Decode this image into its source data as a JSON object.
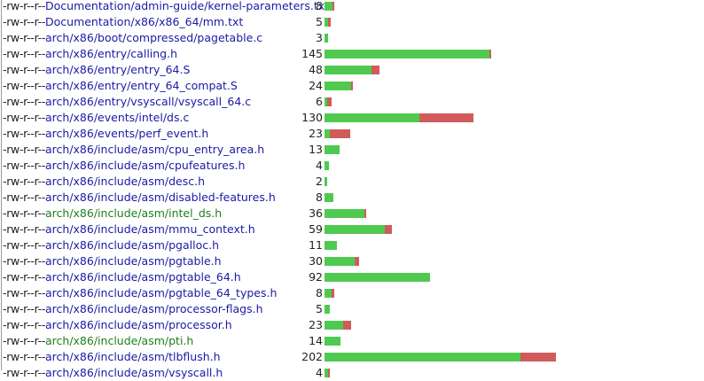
{
  "colors": {
    "insert": "#4fca4f",
    "delete": "#cf5b5b",
    "link": "#1a1aa6",
    "added_link": "#1c7f1c"
  },
  "scale_total": 202,
  "files": [
    {
      "mode": "-rw-r--r--",
      "path": "Documentation/admin-guide/kernel-parameters.txt",
      "count": "8",
      "ins": 7,
      "del": 1,
      "added": false
    },
    {
      "mode": "-rw-r--r--",
      "path": "Documentation/x86/x86_64/mm.txt",
      "count": "5",
      "ins": 3,
      "del": 2,
      "added": false
    },
    {
      "mode": "-rw-r--r--",
      "path": "arch/x86/boot/compressed/pagetable.c",
      "count": "3",
      "ins": 3,
      "del": 0,
      "added": false
    },
    {
      "mode": "-rw-r--r--",
      "path": "arch/x86/entry/calling.h",
      "count": "145",
      "ins": 144,
      "del": 1,
      "added": false
    },
    {
      "mode": "-rw-r--r--",
      "path": "arch/x86/entry/entry_64.S",
      "count": "48",
      "ins": 41,
      "del": 7,
      "added": false
    },
    {
      "mode": "-rw-r--r--",
      "path": "arch/x86/entry/entry_64_compat.S",
      "count": "24",
      "ins": 23,
      "del": 1,
      "added": false
    },
    {
      "mode": "-rw-r--r--",
      "path": "arch/x86/entry/vsyscall/vsyscall_64.c",
      "count": "6",
      "ins": 2,
      "del": 4,
      "added": false
    },
    {
      "mode": "-rw-r--r--",
      "path": "arch/x86/events/intel/ds.c",
      "count": "130",
      "ins": 83,
      "del": 47,
      "added": false
    },
    {
      "mode": "-rw-r--r--",
      "path": "arch/x86/events/perf_event.h",
      "count": "23",
      "ins": 5,
      "del": 18,
      "added": false
    },
    {
      "mode": "-rw-r--r--",
      "path": "arch/x86/include/asm/cpu_entry_area.h",
      "count": "13",
      "ins": 13,
      "del": 0,
      "added": false
    },
    {
      "mode": "-rw-r--r--",
      "path": "arch/x86/include/asm/cpufeatures.h",
      "count": "4",
      "ins": 4,
      "del": 0,
      "added": false
    },
    {
      "mode": "-rw-r--r--",
      "path": "arch/x86/include/asm/desc.h",
      "count": "2",
      "ins": 2,
      "del": 0,
      "added": false
    },
    {
      "mode": "-rw-r--r--",
      "path": "arch/x86/include/asm/disabled-features.h",
      "count": "8",
      "ins": 8,
      "del": 0,
      "added": false
    },
    {
      "mode": "-rw-r--r--",
      "path": "arch/x86/include/asm/intel_ds.h",
      "count": "36",
      "ins": 35,
      "del": 1,
      "added": true
    },
    {
      "mode": "-rw-r--r--",
      "path": "arch/x86/include/asm/mmu_context.h",
      "count": "59",
      "ins": 53,
      "del": 6,
      "added": false
    },
    {
      "mode": "-rw-r--r--",
      "path": "arch/x86/include/asm/pgalloc.h",
      "count": "11",
      "ins": 11,
      "del": 0,
      "added": false
    },
    {
      "mode": "-rw-r--r--",
      "path": "arch/x86/include/asm/pgtable.h",
      "count": "30",
      "ins": 26,
      "del": 4,
      "added": false
    },
    {
      "mode": "-rw-r--r--",
      "path": "arch/x86/include/asm/pgtable_64.h",
      "count": "92",
      "ins": 92,
      "del": 0,
      "added": false
    },
    {
      "mode": "-rw-r--r--",
      "path": "arch/x86/include/asm/pgtable_64_types.h",
      "count": "8",
      "ins": 6,
      "del": 2,
      "added": false
    },
    {
      "mode": "-rw-r--r--",
      "path": "arch/x86/include/asm/processor-flags.h",
      "count": "5",
      "ins": 5,
      "del": 0,
      "added": false
    },
    {
      "mode": "-rw-r--r--",
      "path": "arch/x86/include/asm/processor.h",
      "count": "23",
      "ins": 16,
      "del": 7,
      "added": false
    },
    {
      "mode": "-rw-r--r--",
      "path": "arch/x86/include/asm/pti.h",
      "count": "14",
      "ins": 14,
      "del": 0,
      "added": true
    },
    {
      "mode": "-rw-r--r--",
      "path": "arch/x86/include/asm/tlbflush.h",
      "count": "202",
      "ins": 171,
      "del": 31,
      "added": false
    },
    {
      "mode": "-rw-r--r--",
      "path": "arch/x86/include/asm/vsyscall.h",
      "count": "4",
      "ins": 3,
      "del": 1,
      "added": false
    }
  ]
}
